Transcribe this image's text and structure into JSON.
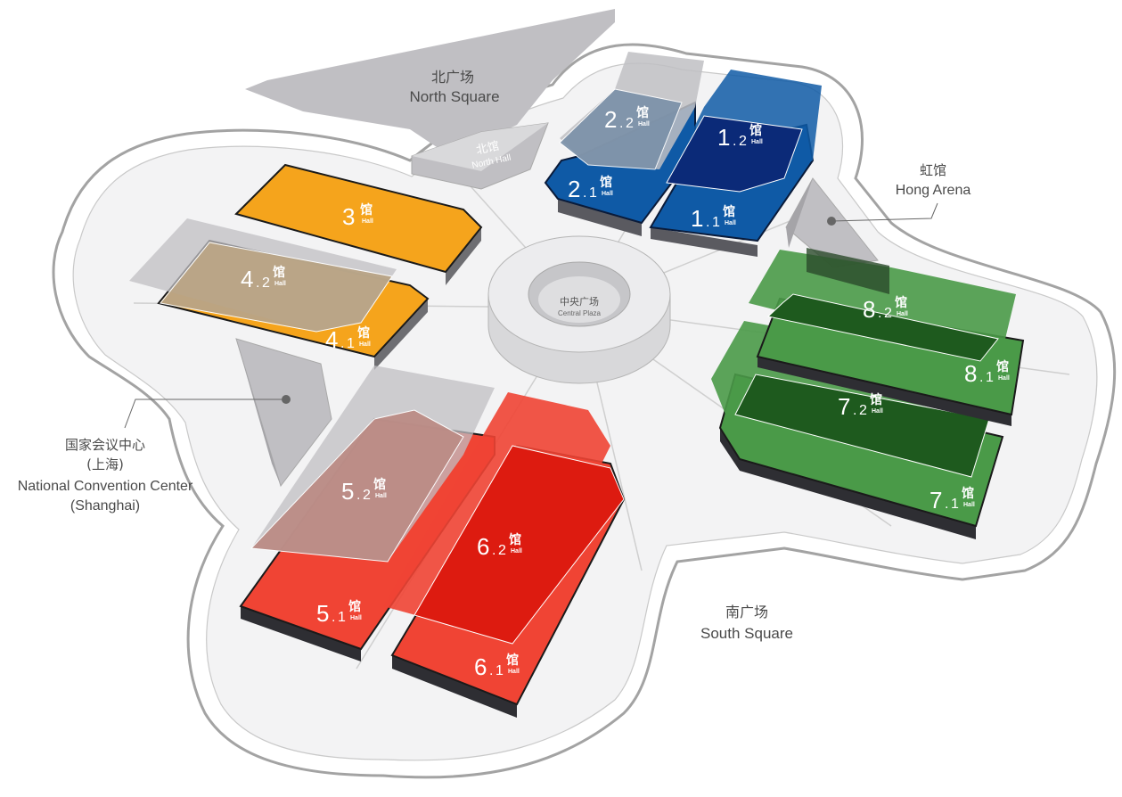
{
  "places": {
    "north_square": {
      "cn": "北广场",
      "en": "North Square"
    },
    "south_square": {
      "cn": "南广场",
      "en": "South Square"
    },
    "north_hall": {
      "cn": "北馆",
      "en": "North Hall"
    },
    "central_plaza": {
      "cn": "中央广场",
      "en": "Central Plaza"
    },
    "hong_arena": {
      "cn": "虹馆",
      "en": "Hong Arena"
    },
    "ncc": {
      "cn": "国家会议中心",
      "cn2": "(上海)",
      "en": "National Convention Center",
      "en2": "(Shanghai)"
    }
  },
  "halls": {
    "h1_1": {
      "num": "1",
      "sub": "1",
      "cn": "馆",
      "en": "Hall"
    },
    "h1_2": {
      "num": "1",
      "sub": "2",
      "cn": "馆",
      "en": "Hall"
    },
    "h2_1": {
      "num": "2",
      "sub": "1",
      "cn": "馆",
      "en": "Hall"
    },
    "h2_2": {
      "num": "2",
      "sub": "2",
      "cn": "馆",
      "en": "Hall"
    },
    "h3": {
      "num": "3",
      "sub": "",
      "cn": "馆",
      "en": "Hall"
    },
    "h4_1": {
      "num": "4",
      "sub": "1",
      "cn": "馆",
      "en": "Hall"
    },
    "h4_2": {
      "num": "4",
      "sub": "2",
      "cn": "馆",
      "en": "Hall"
    },
    "h5_1": {
      "num": "5",
      "sub": "1",
      "cn": "馆",
      "en": "Hall"
    },
    "h5_2": {
      "num": "5",
      "sub": "2",
      "cn": "馆",
      "en": "Hall"
    },
    "h6_1": {
      "num": "6",
      "sub": "1",
      "cn": "馆",
      "en": "Hall"
    },
    "h6_2": {
      "num": "6",
      "sub": "2",
      "cn": "馆",
      "en": "Hall"
    },
    "h7_1": {
      "num": "7",
      "sub": "1",
      "cn": "馆",
      "en": "Hall"
    },
    "h7_2": {
      "num": "7",
      "sub": "2",
      "cn": "馆",
      "en": "Hall"
    },
    "h8_1": {
      "num": "8",
      "sub": "1",
      "cn": "馆",
      "en": "Hall"
    },
    "h8_2": {
      "num": "8",
      "sub": "2",
      "cn": "馆",
      "en": "Hall"
    }
  },
  "colors": {
    "blue": "#0f5aa6",
    "navy": "#0b2a78",
    "orange": "#f5a41c",
    "tan": "#b9a587",
    "red": "#f04434",
    "darkred": "#dd1b10",
    "green": "#4a9a48",
    "darkgreen": "#1e5a1e",
    "gray": "#c0bfc3",
    "outline": "#9a9a9a"
  }
}
